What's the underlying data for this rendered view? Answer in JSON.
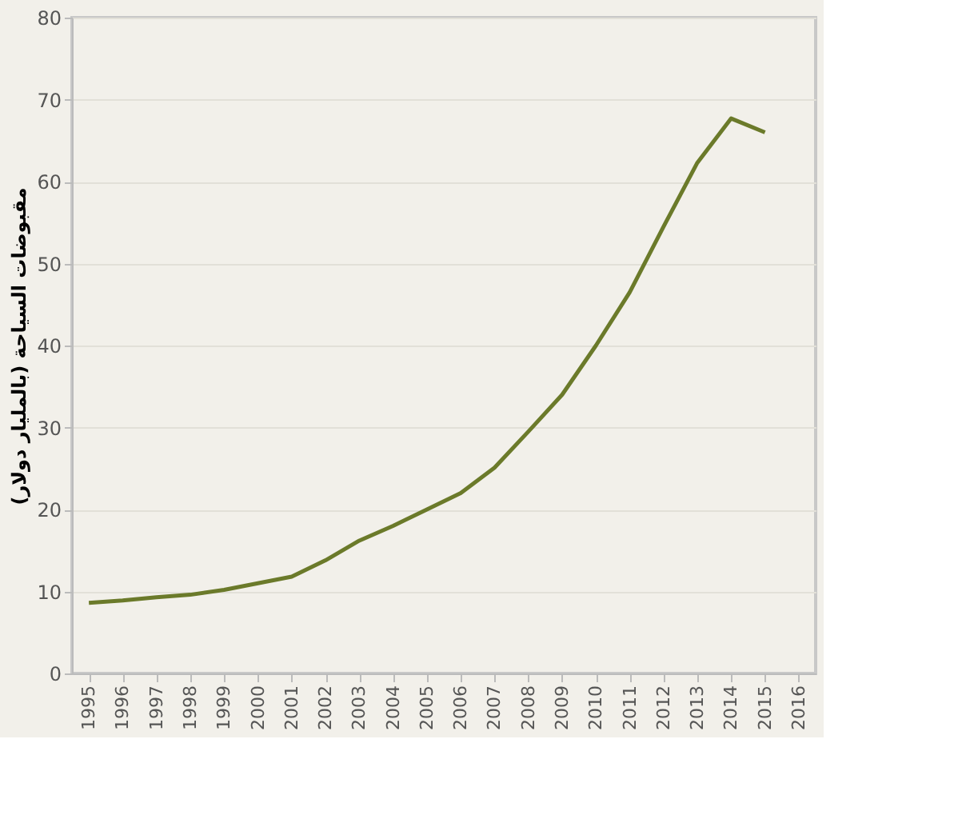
{
  "chart_data": {
    "type": "line",
    "ylabel": "مقبوضات السياحة (بالمليار دولار)",
    "categories": [
      "1995",
      "1996",
      "1997",
      "1998",
      "1999",
      "2000",
      "2001",
      "2002",
      "2003",
      "2004",
      "2005",
      "2006",
      "2007",
      "2008",
      "2009",
      "2010",
      "2011",
      "2012",
      "2013",
      "2014",
      "2015",
      "2016"
    ],
    "series": [
      {
        "color": "#6b7a2a",
        "values": [
          8.6,
          8.9,
          9.3,
          9.6,
          10.2,
          11.0,
          11.8,
          13.8,
          16.2,
          18.0,
          20.0,
          22.0,
          25.1,
          29.5,
          34.0,
          40.0,
          46.5,
          54.5,
          62.3,
          67.7,
          66.0,
          null
        ]
      }
    ],
    "ylim": [
      0,
      80
    ],
    "yticks": [
      0,
      10,
      20,
      30,
      40,
      50,
      60,
      70,
      80
    ],
    "grid": "y",
    "marker": "none",
    "line_style": "solid"
  }
}
